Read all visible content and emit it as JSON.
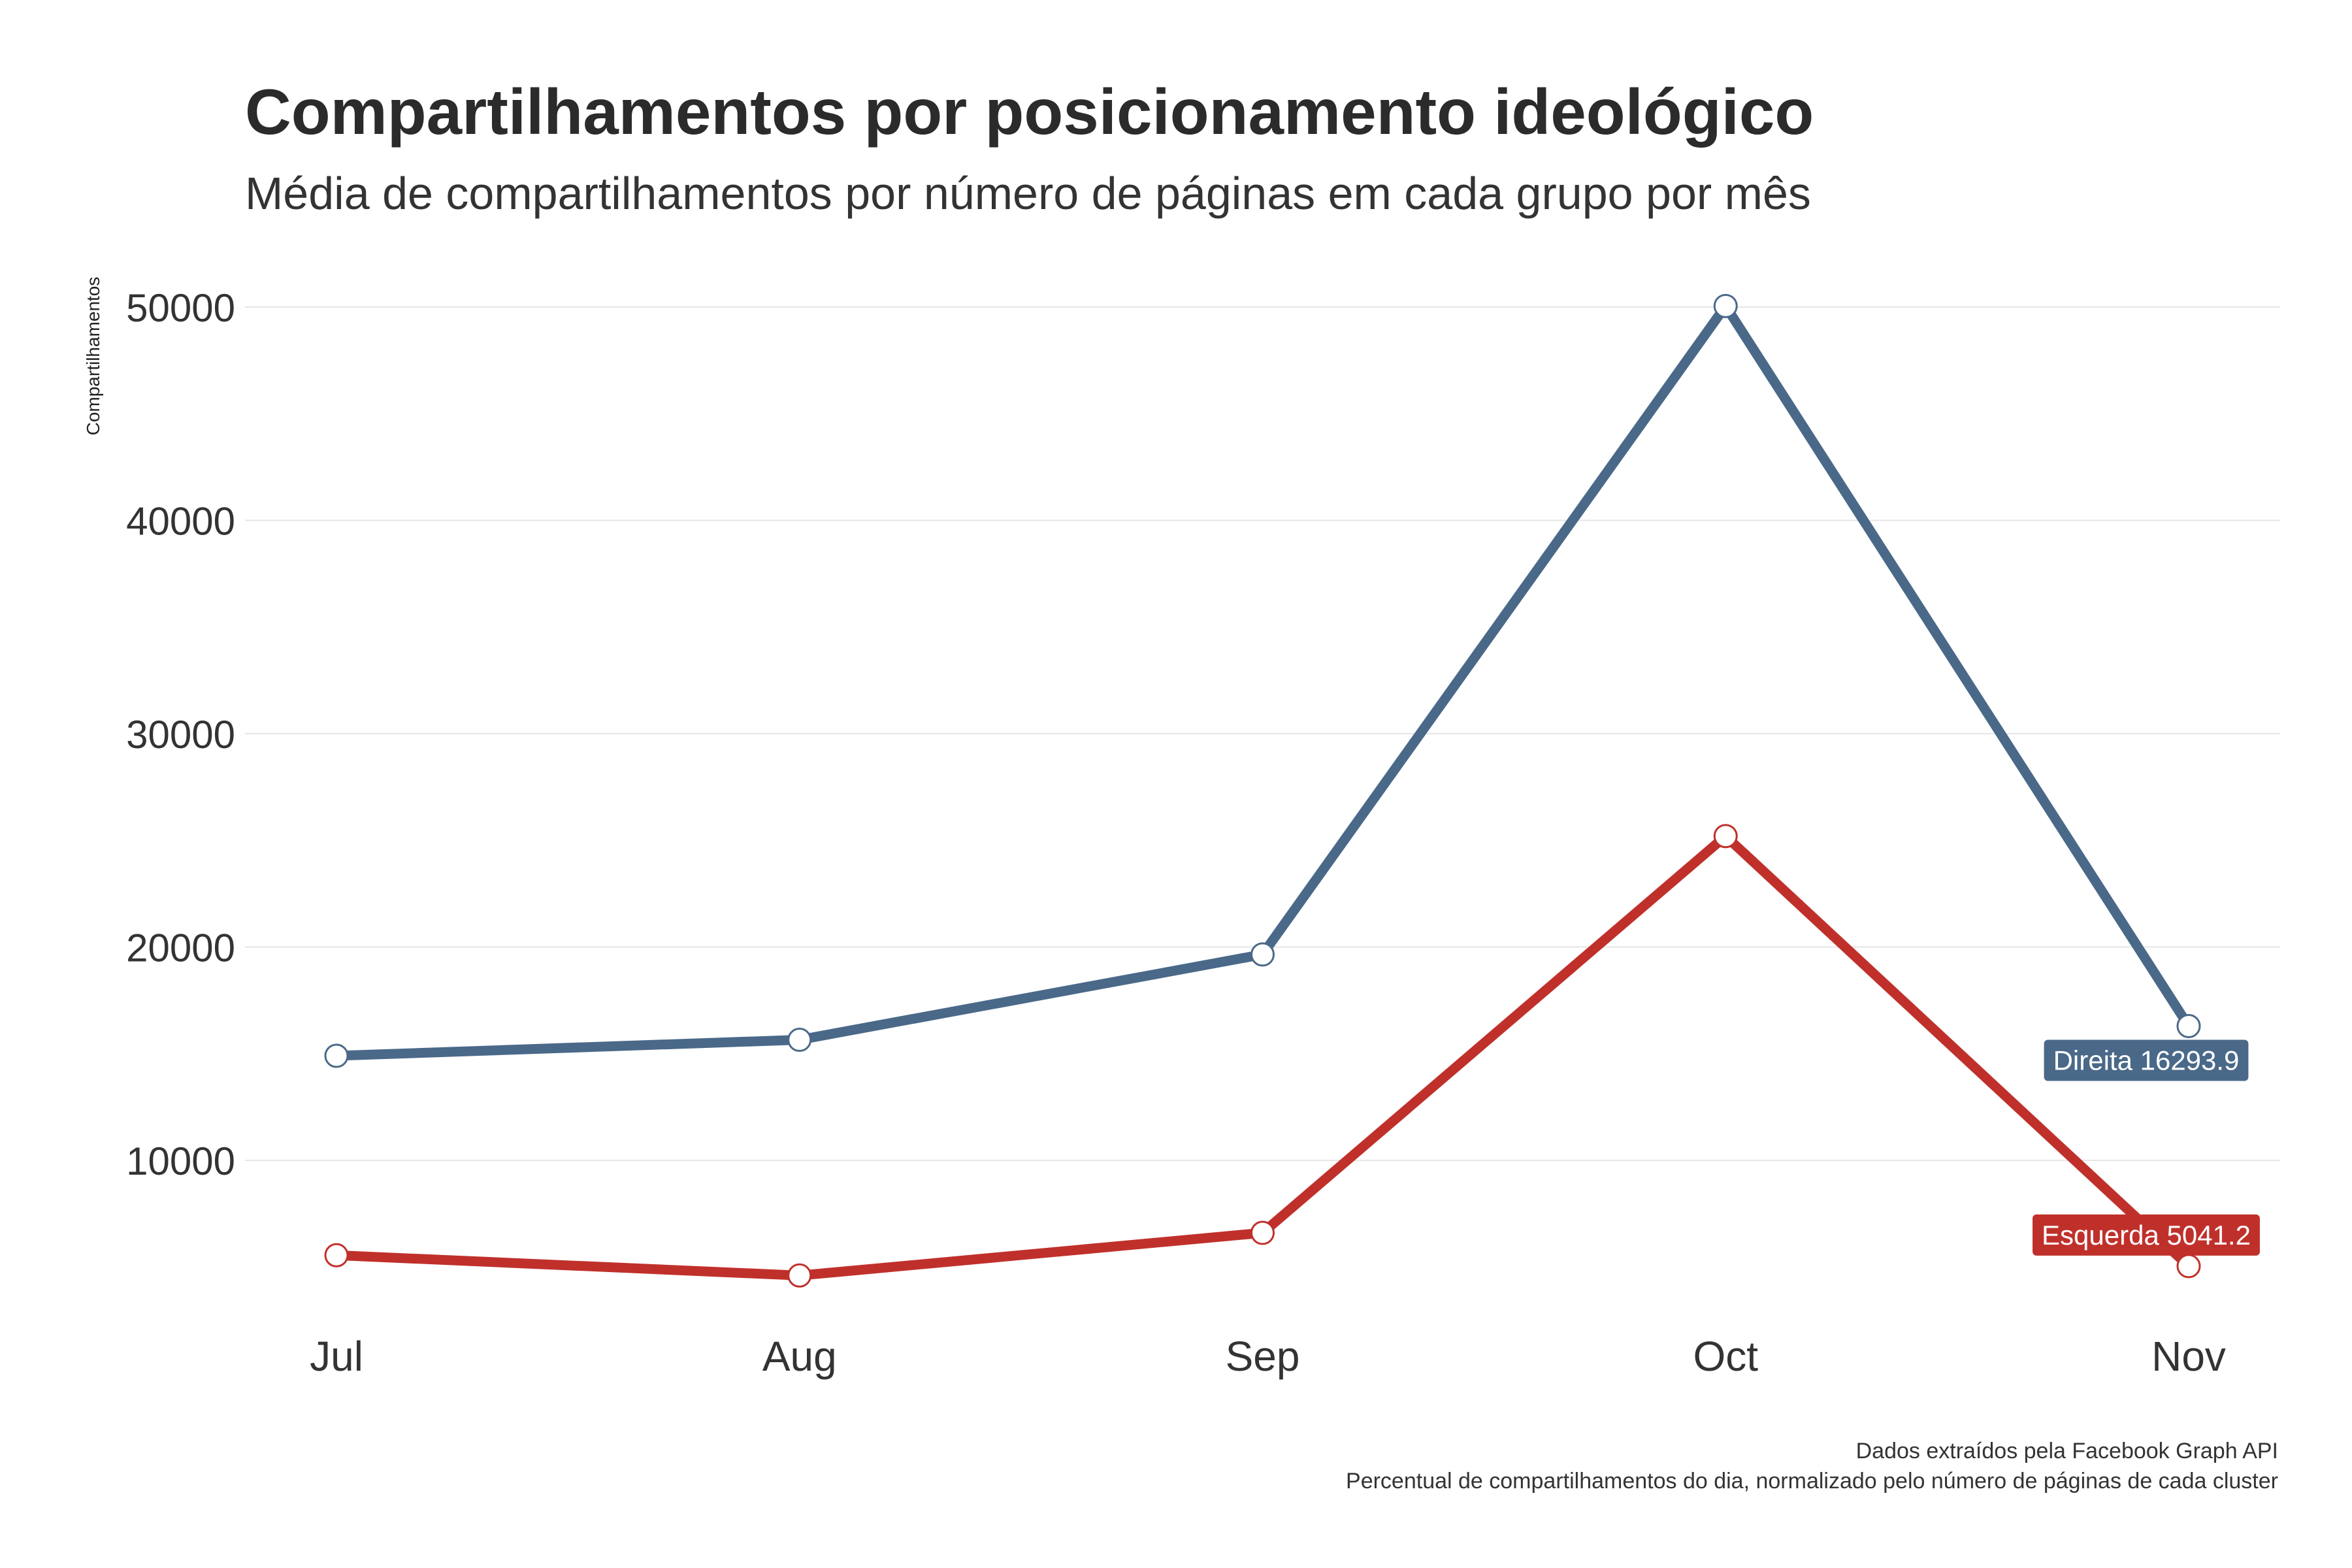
{
  "chart_data": {
    "type": "line",
    "title": "Compartilhamentos por posicionamento ideológico",
    "subtitle": "Média de compartilhamentos por número de páginas em cada grupo por mês",
    "xlabel": "",
    "ylabel": "Compartilhamentos",
    "categories": [
      "Jul",
      "Aug",
      "Sep",
      "Oct",
      "Nov"
    ],
    "ylim": [
      2500,
      51500
    ],
    "yticks": [
      10000,
      20000,
      30000,
      40000,
      50000
    ],
    "grid": true,
    "legend": "none (direct labels at line ends)",
    "series": [
      {
        "name": "Direita",
        "color": "#4a6989",
        "values": [
          14900,
          15650,
          19650,
          50050,
          16293.9
        ],
        "end_label": "Direita 16293.9"
      },
      {
        "name": "Esquerda",
        "color": "#c0302b",
        "values": [
          5550,
          4600,
          6600,
          25200,
          5041.2
        ],
        "end_label": "Esquerda 5041.2"
      }
    ],
    "caption": [
      "Dados extraídos pela Facebook Graph API",
      "Percentual de compartilhamentos do dia, normalizado pelo número de páginas de cada cluster"
    ]
  }
}
